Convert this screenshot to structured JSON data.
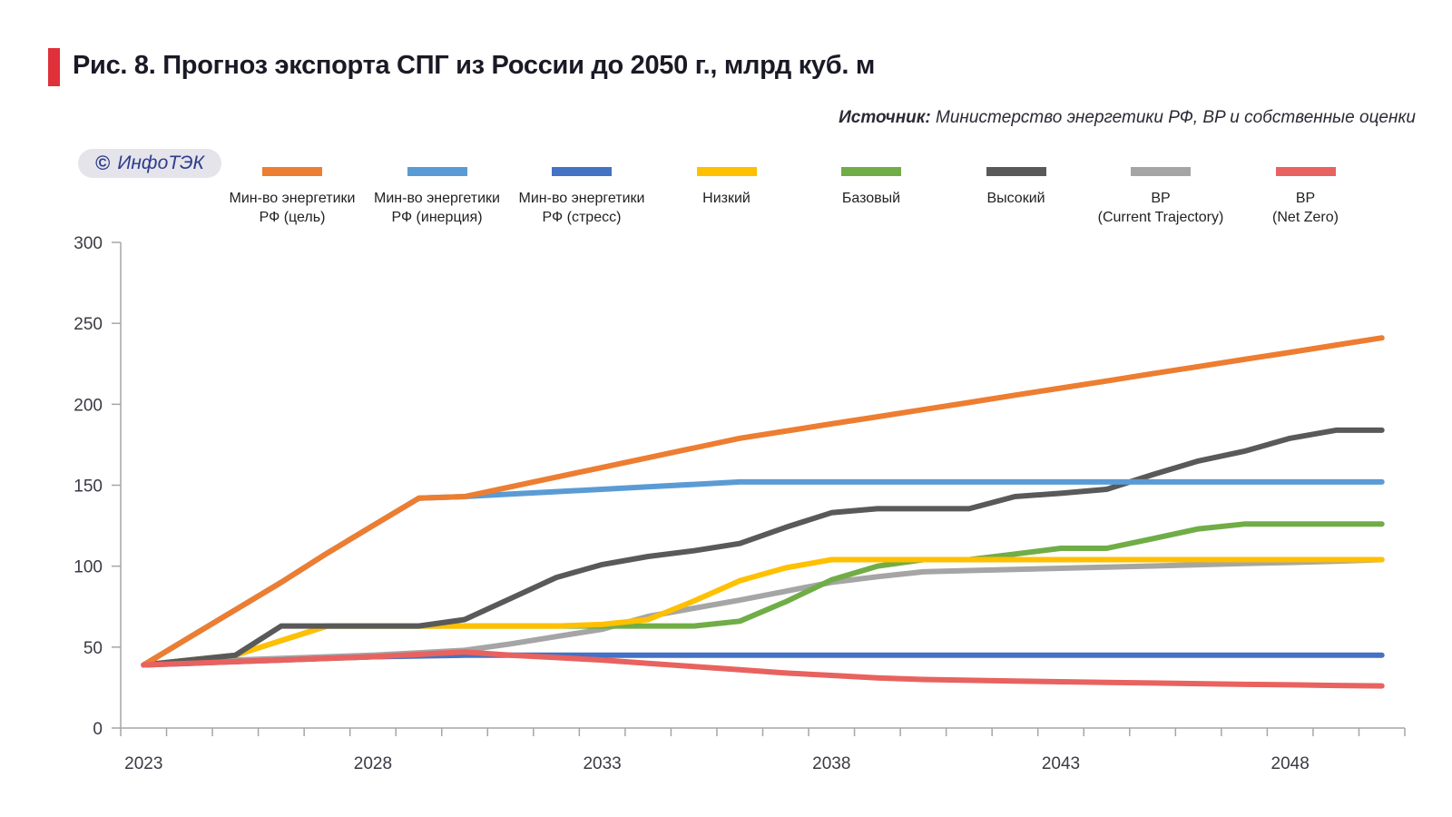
{
  "header": {
    "title": "Рис. 8. Прогноз экспорта СПГ из России до 2050 г., млрд куб. м",
    "source_label": "Источник:",
    "source_text": " Министерство энергетики РФ, BP и собственные оценки",
    "badge_symbol": "©",
    "badge_text": "ИнфоТЭК"
  },
  "chart_data": {
    "type": "line",
    "title": "Рис. 8. Прогноз экспорта СПГ из России до 2050 г., млрд куб. м",
    "xlabel": "",
    "ylabel": "млрд куб. м",
    "ylim": [
      0,
      300
    ],
    "yticks": [
      0,
      50,
      100,
      150,
      200,
      250,
      300
    ],
    "x": [
      2023,
      2024,
      2025,
      2026,
      2027,
      2028,
      2029,
      2030,
      2031,
      2032,
      2033,
      2034,
      2035,
      2036,
      2037,
      2038,
      2039,
      2040,
      2041,
      2042,
      2043,
      2044,
      2045,
      2046,
      2047,
      2048,
      2049,
      2050
    ],
    "xtick_labels": [
      "2023",
      "2028",
      "2033",
      "2038",
      "2043",
      "2048"
    ],
    "grid": false,
    "legend_position": "top",
    "series": [
      {
        "name": "Мин-во энергетики\nРФ (цель)",
        "color": "#ed7d31",
        "values": [
          39,
          56,
          73,
          90,
          108,
          125,
          142,
          143,
          149,
          155,
          161,
          167,
          173,
          179,
          183.4,
          187.9,
          192.3,
          196.7,
          201.1,
          205.6,
          210,
          214.4,
          218.9,
          223.3,
          227.7,
          232.1,
          236.6,
          241
        ]
      },
      {
        "name": "Мин-во энергетики\nРФ (инерция)",
        "color": "#5b9bd5",
        "values": [
          39,
          56,
          73,
          90,
          108,
          125,
          142,
          143,
          144.5,
          146,
          147.5,
          149,
          150.5,
          152,
          152,
          152,
          152,
          152,
          152,
          152,
          152,
          152,
          152,
          152,
          152,
          152,
          152,
          152
        ]
      },
      {
        "name": "Мин-во энергетики\nРФ (стресс)",
        "color": "#4472c4",
        "values": [
          39,
          40,
          41,
          42,
          43,
          44,
          44.5,
          45,
          45,
          45,
          45,
          45,
          45,
          45,
          45,
          45,
          45,
          45,
          45,
          45,
          45,
          45,
          45,
          45,
          45,
          45,
          45,
          45
        ]
      },
      {
        "name": "Низкий",
        "color": "#ffc000",
        "values": [
          39,
          42,
          45,
          54,
          63,
          63,
          63,
          63,
          63,
          63,
          64,
          67,
          78.5,
          91,
          99,
          104,
          104,
          104,
          104,
          104,
          104,
          104,
          104,
          104,
          104,
          104,
          104,
          104
        ]
      },
      {
        "name": "Базовый",
        "color": "#70ad47",
        "values": [
          39,
          42,
          45,
          54,
          63,
          63,
          63,
          63,
          63,
          63,
          63,
          63,
          63,
          66,
          78,
          91.5,
          100,
          104,
          104,
          107.5,
          111,
          111,
          117,
          123,
          126,
          126,
          126,
          126
        ]
      },
      {
        "name": "Высокий",
        "color": "#595959",
        "values": [
          39,
          42,
          45,
          63,
          63,
          63,
          63,
          67,
          80,
          93,
          101,
          106,
          109.5,
          114,
          124,
          133,
          135.5,
          135.5,
          135.5,
          143,
          145,
          147.5,
          156.5,
          165,
          171,
          179,
          184,
          184
        ]
      },
      {
        "name": "BP\n(Current Trajectory)",
        "color": "#a5a5a5",
        "values": [
          39,
          40.5,
          42,
          43,
          44,
          45,
          46.5,
          48,
          52,
          56.5,
          61,
          69,
          74,
          79,
          84.5,
          90,
          93.5,
          96.5,
          97.3,
          98,
          98.7,
          99.4,
          100.1,
          100.9,
          101.6,
          102.3,
          103,
          104
        ]
      },
      {
        "name": "BP\n(Net Zero)",
        "color": "#e8625f",
        "values": [
          39,
          40,
          41,
          42,
          43,
          44,
          45.5,
          47,
          45,
          43.5,
          42,
          40,
          38,
          36,
          34,
          32.5,
          31,
          30,
          29.5,
          29,
          28.6,
          28.2,
          27.8,
          27.4,
          27,
          26.7,
          26.3,
          26
        ]
      }
    ]
  }
}
